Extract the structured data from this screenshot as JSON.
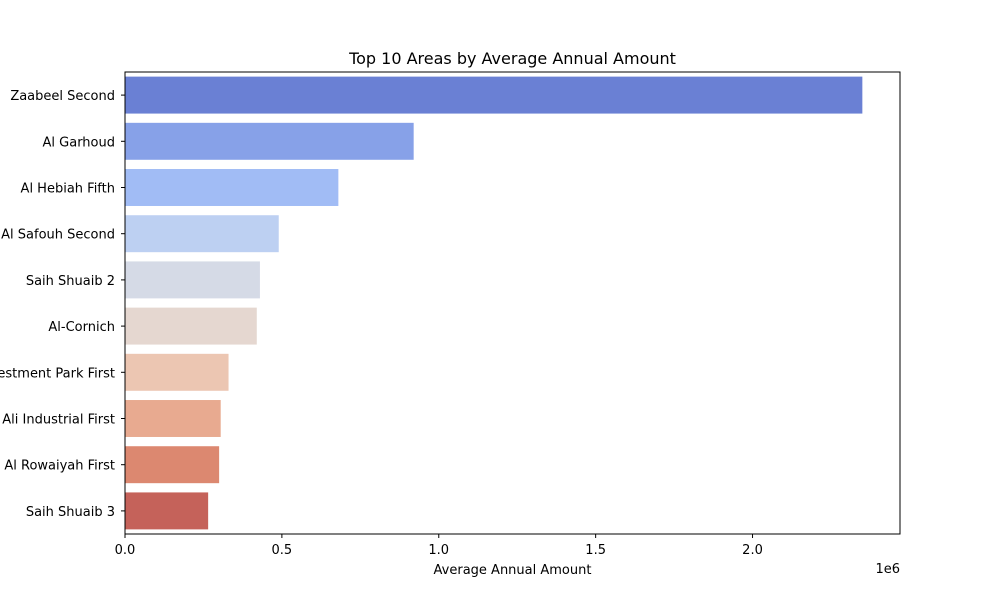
{
  "chart_data": {
    "type": "bar",
    "orientation": "horizontal",
    "title": "Top 10 Areas by Average Annual Amount",
    "xlabel": "Average Annual Amount",
    "ylabel": "",
    "x_offset_text": "1e6",
    "xlim": [
      0,
      2470000
    ],
    "x_ticks": [
      0,
      500000,
      1000000,
      1500000,
      2000000
    ],
    "x_tick_labels": [
      "0.0",
      "0.5",
      "1.0",
      "1.5",
      "2.0"
    ],
    "grid": false,
    "legend": "none",
    "categories": [
      "Zaabeel Second",
      "Al Garhoud",
      "Al Hebiah Fifth",
      "Al Safouh Second",
      "Saih Shuaib 2",
      "Al-Cornich",
      "Investment Park First",
      "Jebel Ali Industrial First",
      "Al Rowaiyah First",
      "Saih Shuaib 3"
    ],
    "values": [
      2350000,
      920000,
      680000,
      490000,
      430000,
      420000,
      330000,
      305000,
      300000,
      265000
    ],
    "colors": [
      "#6a80d4",
      "#87a1e8",
      "#a1bcf5",
      "#bdd0f2",
      "#d5dae6",
      "#e5d7d0",
      "#ecc6b2",
      "#e8aa90",
      "#dc8870",
      "#c5625a"
    ]
  }
}
